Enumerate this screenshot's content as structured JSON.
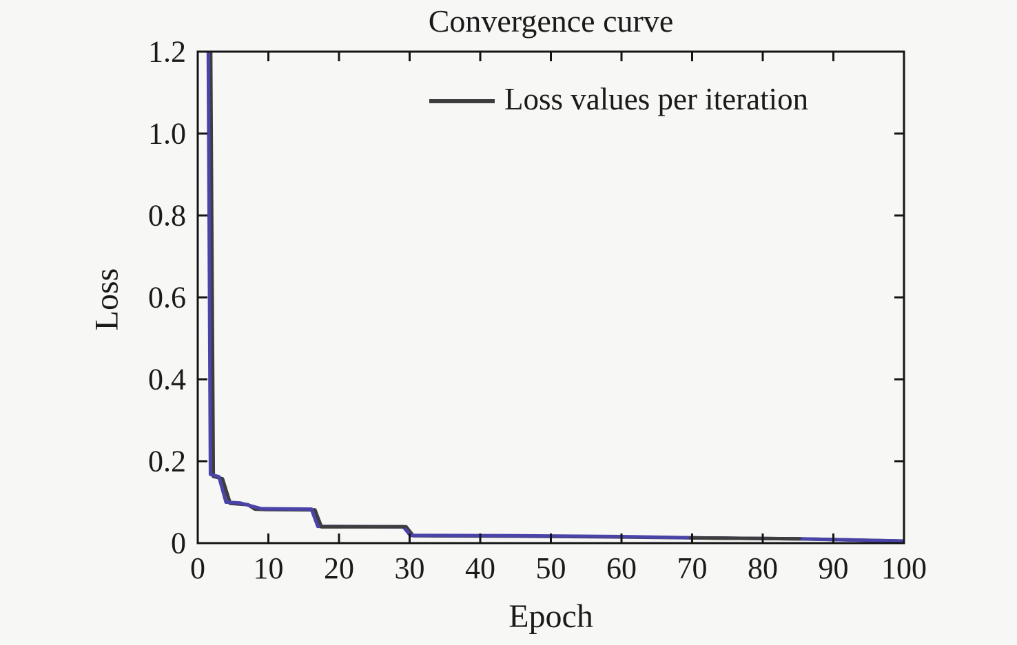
{
  "page": {
    "background": "#f7f7f6",
    "text_color": "#1a1a1a",
    "axis_color": "#141414"
  },
  "chart_data": {
    "type": "line",
    "title": "Convergence curve",
    "xlabel": "Epoch",
    "ylabel": "Loss",
    "xlim": [
      0,
      100
    ],
    "ylim": [
      0,
      1.2
    ],
    "grid": false,
    "box": true,
    "ticks_direction": "in",
    "xticks": {
      "values": [
        0,
        10,
        20,
        30,
        40,
        50,
        60,
        70,
        80,
        90,
        100
      ],
      "labels": [
        "0",
        "10",
        "20",
        "30",
        "40",
        "50",
        "60",
        "70",
        "80",
        "90",
        "100"
      ]
    },
    "yticks": {
      "values": [
        0,
        0.2,
        0.4,
        0.6,
        0.8,
        1.0,
        1.2
      ],
      "labels": [
        "0",
        "0.2",
        "0.4",
        "0.6",
        "0.8",
        "1.0",
        "1.2"
      ]
    },
    "legend": {
      "position": "top-center-inside",
      "entries": [
        {
          "label": "Loss values per iteration",
          "color": "#3d3d3d"
        }
      ]
    },
    "series": [
      {
        "name": "loss-per-iteration",
        "color": "#3d3d3d",
        "width": 5,
        "points": [
          [
            1.8,
            1.32
          ],
          [
            2.2,
            0.163
          ],
          [
            3.5,
            0.157
          ],
          [
            4.6,
            0.097
          ],
          [
            7.1,
            0.094
          ],
          [
            8.1,
            0.083
          ],
          [
            9.5,
            0.082
          ],
          [
            16.6,
            0.081
          ],
          [
            17.5,
            0.04
          ],
          [
            29.5,
            0.04
          ],
          [
            30.5,
            0.018
          ],
          [
            45,
            0.017
          ],
          [
            60,
            0.015
          ],
          [
            69.5,
            0.013
          ],
          [
            85.3,
            0.0105
          ],
          [
            100,
            0.005
          ]
        ]
      },
      {
        "name": "loss-per-epoch",
        "color": "#4a43a8",
        "width": 5,
        "points": [
          [
            1.45,
            1.32
          ],
          [
            1.8,
            0.168
          ],
          [
            3.0,
            0.162
          ],
          [
            4.0,
            0.1
          ],
          [
            6.0,
            0.098
          ],
          [
            9.0,
            0.084
          ],
          [
            16.1,
            0.083
          ],
          [
            17.0,
            0.041
          ],
          [
            29.1,
            0.04
          ],
          [
            30.1,
            0.019
          ],
          [
            45,
            0.018
          ],
          [
            60,
            0.016
          ],
          [
            70,
            0.013
          ],
          [
            85,
            0.0105
          ],
          [
            100,
            0.005
          ]
        ]
      }
    ],
    "overlay_segments": [
      {
        "name": "iteration-line-visible-overlap-1",
        "color": "#3d3d3d",
        "width": 5,
        "points": [
          [
            17.5,
            0.04
          ],
          [
            29.2,
            0.04
          ]
        ]
      },
      {
        "name": "iteration-line-visible-overlap-2",
        "color": "#3d3d3d",
        "width": 5,
        "points": [
          [
            69.8,
            0.0128
          ],
          [
            85.2,
            0.0105
          ]
        ]
      }
    ]
  }
}
